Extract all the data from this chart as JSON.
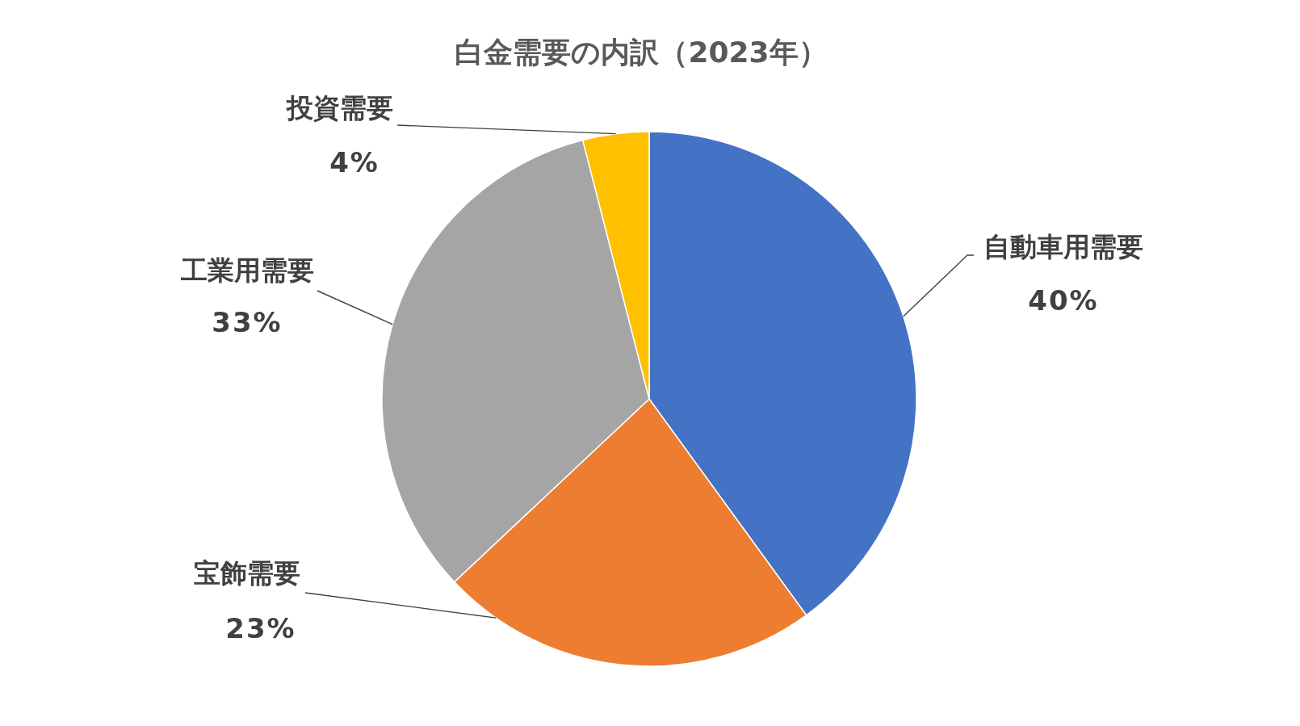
{
  "chart_data": {
    "type": "pie",
    "title": "白金需要の内訳（2023年）",
    "categories": [
      "自動車用需要",
      "宝飾需要",
      "工業用需要",
      "投資需要"
    ],
    "values": [
      40,
      23,
      33,
      4
    ],
    "colors": [
      "#4472c4",
      "#ed7d31",
      "#a5a5a5",
      "#ffc000"
    ],
    "value_labels": [
      "40%",
      "23%",
      "33%",
      "4%"
    ]
  }
}
